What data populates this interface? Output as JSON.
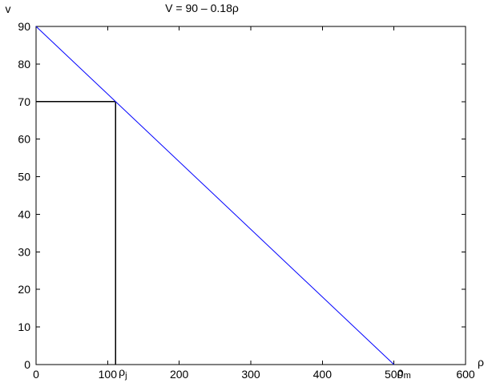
{
  "chart_data": {
    "type": "line",
    "title": "V = 90 – 0.18ρ",
    "xlabel": "ρ",
    "ylabel": "v",
    "xlim": [
      0,
      600
    ],
    "ylim": [
      0,
      90
    ],
    "x_ticks": [
      0,
      100,
      200,
      300,
      400,
      500,
      600
    ],
    "y_ticks": [
      0,
      10,
      20,
      30,
      40,
      50,
      60,
      70,
      80,
      90
    ],
    "x_tick_labels": [
      "0",
      "100",
      "200",
      "300",
      "400",
      "500",
      "600"
    ],
    "y_tick_labels": [
      "0",
      "10",
      "20",
      "30",
      "40",
      "50",
      "60",
      "70",
      "80",
      "90"
    ],
    "grid": false,
    "series": [
      {
        "x": [
          0,
          500
        ],
        "y": [
          90,
          0
        ],
        "color": "#0000ff"
      }
    ],
    "guide_lines": [
      {
        "x": [
          0,
          111
        ],
        "y": [
          70,
          70
        ],
        "color": "#000000"
      },
      {
        "x": [
          111,
          111
        ],
        "y": [
          0,
          70
        ],
        "color": "#000000"
      }
    ],
    "annotations": [
      {
        "base": "ρ",
        "sub": "j",
        "x": 111,
        "y": 0
      },
      {
        "base": "ρ",
        "sub": "m",
        "x": 500,
        "y": 0
      }
    ]
  }
}
